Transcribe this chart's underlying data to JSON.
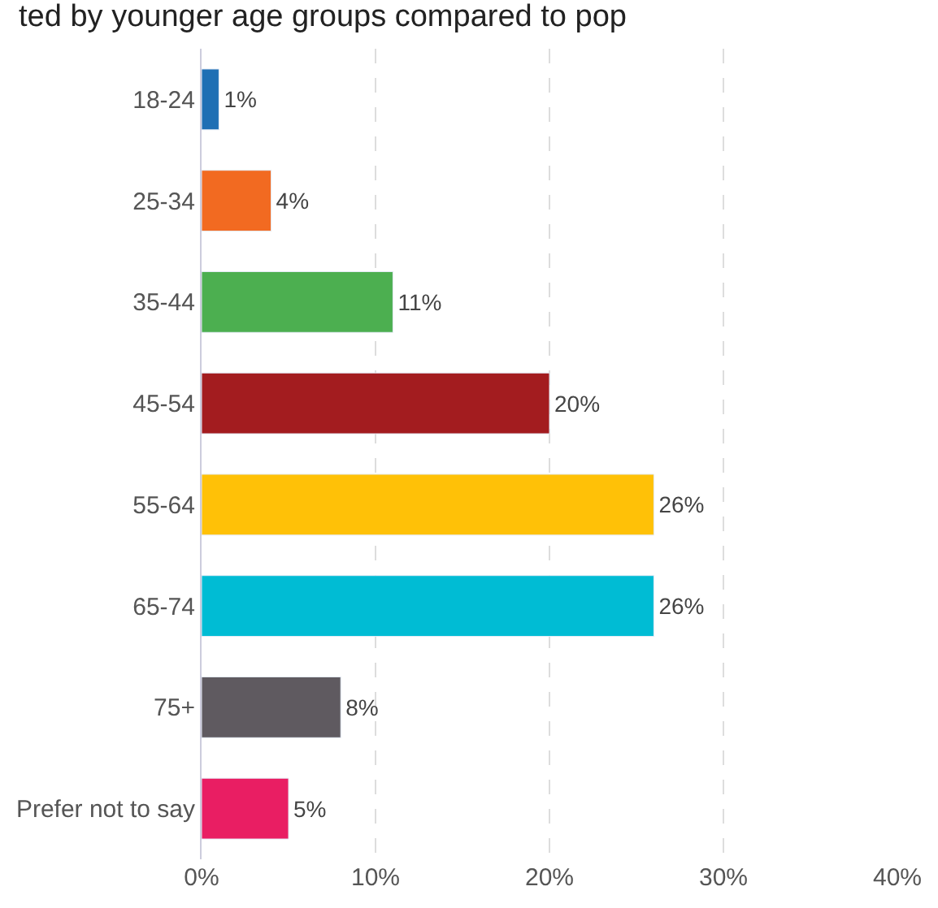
{
  "chart_data": {
    "type": "bar",
    "orientation": "horizontal",
    "title": "ted by younger age groups compared to pop",
    "categories": [
      "18-24",
      "25-34",
      "35-44",
      "45-54",
      "55-64",
      "65-74",
      "75+",
      "Prefer not to say"
    ],
    "values": [
      1,
      4,
      11,
      20,
      26,
      26,
      8,
      5
    ],
    "colors": [
      "#1f6fb4",
      "#f26a21",
      "#4caf50",
      "#a31c1f",
      "#ffc107",
      "#00bcd4",
      "#5f5a60",
      "#e91e63"
    ],
    "value_labels": [
      "1%",
      "4%",
      "11%",
      "20%",
      "26%",
      "26%",
      "8%",
      "5%"
    ],
    "xlim": [
      0,
      40
    ],
    "xticks": [
      {
        "value": 0,
        "label": "0%"
      },
      {
        "value": 10,
        "label": "10%"
      },
      {
        "value": 20,
        "label": "20%"
      },
      {
        "value": 30,
        "label": "30%"
      },
      {
        "value": 40,
        "label": "40%"
      }
    ],
    "grid": "x"
  }
}
